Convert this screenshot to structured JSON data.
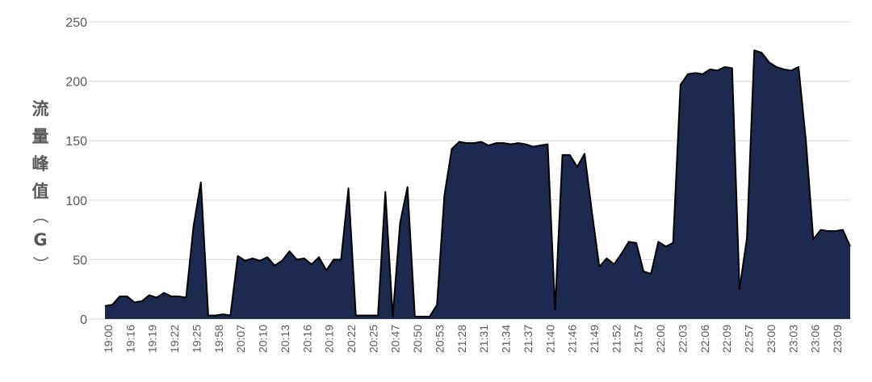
{
  "chart_data": {
    "type": "area",
    "title": "",
    "xlabel": "",
    "ylabel": "流量峰值（G）",
    "ylabel_chars": [
      "流",
      "量",
      "峰",
      "值",
      "（",
      "G",
      "）"
    ],
    "ylim": [
      0,
      250
    ],
    "yticks": [
      "0",
      "50",
      "100",
      "150",
      "200",
      "250"
    ],
    "grid": true,
    "legend": "none",
    "fill_color": "#1b2a4e",
    "line_color": "#000000",
    "grid_color": "#d9d9d9",
    "xtick_labels": [
      "19:00",
      "19:16",
      "19:19",
      "19:22",
      "19:25",
      "19:58",
      "20:07",
      "20:10",
      "20:13",
      "20:16",
      "20:19",
      "20:22",
      "20:25",
      "20:47",
      "20:50",
      "20:53",
      "21:28",
      "21:31",
      "21:34",
      "21:37",
      "21:40",
      "21:46",
      "21:49",
      "21:52",
      "21:57",
      "22:00",
      "22:03",
      "22:06",
      "22:09",
      "22:57",
      "23:00",
      "23:03",
      "23:06",
      "23:09"
    ],
    "values": [
      11,
      12,
      19,
      19,
      14,
      15,
      20,
      18,
      22,
      19,
      19,
      18,
      78,
      115,
      3,
      3,
      4,
      3,
      53,
      49,
      51,
      49,
      52,
      45,
      49,
      57,
      50,
      51,
      46,
      52,
      41,
      50,
      50,
      110,
      3,
      3,
      3,
      3,
      107,
      2,
      81,
      111,
      2,
      2,
      2,
      12,
      104,
      143,
      149,
      148,
      148,
      149,
      146,
      148,
      148,
      147,
      148,
      147,
      145,
      146,
      147,
      8,
      138,
      138,
      128,
      139,
      90,
      44,
      51,
      46,
      55,
      65,
      64,
      40,
      38,
      65,
      61,
      64,
      197,
      206,
      207,
      206,
      210,
      209,
      212,
      211,
      25,
      68,
      226,
      224,
      216,
      212,
      210,
      209,
      212,
      150,
      67,
      75,
      74,
      74,
      75,
      61
    ]
  }
}
